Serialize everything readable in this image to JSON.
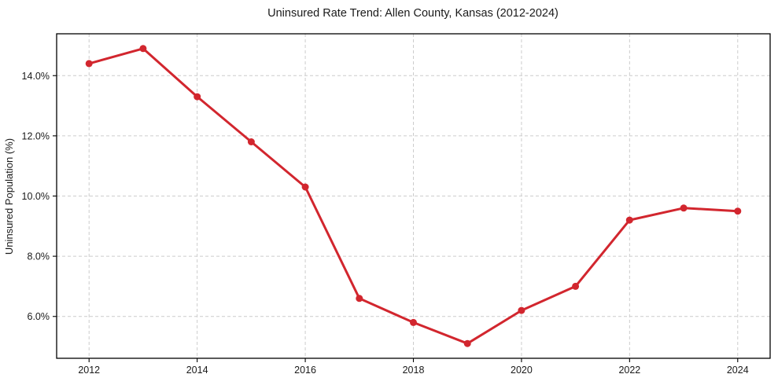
{
  "chart_data": {
    "type": "line",
    "title": "Uninsured Rate Trend: Allen County, Kansas (2012-2024)",
    "xlabel": "",
    "ylabel": "Uninsured Population (%)",
    "series": [
      {
        "name": "Uninsured rate",
        "x": [
          2012,
          2013,
          2014,
          2015,
          2016,
          2017,
          2018,
          2019,
          2020,
          2021,
          2022,
          2023,
          2024
        ],
        "values": [
          14.4,
          14.9,
          13.3,
          11.8,
          10.3,
          6.6,
          5.8,
          5.1,
          6.2,
          7.0,
          9.2,
          9.6,
          9.5
        ]
      }
    ],
    "xlim": [
      2011.4,
      2024.6
    ],
    "ylim": [
      4.61,
      15.39
    ],
    "x_ticks": [
      2012,
      2014,
      2016,
      2018,
      2020,
      2022,
      2024
    ],
    "x_tick_labels": [
      "2012",
      "2014",
      "2016",
      "2018",
      "2020",
      "2022",
      "2024"
    ],
    "y_ticks": [
      6,
      8,
      10,
      12,
      14
    ],
    "y_tick_labels": [
      "6.0%",
      "8.0%",
      "10.0%",
      "12.0%",
      "14.0%"
    ],
    "grid": true,
    "grid_style": "dashed",
    "legend": "none",
    "marker": "circle",
    "style": {
      "line_color": "#d2262e",
      "marker_color": "#d2262e",
      "grid_color": "#cccccc",
      "spine_color": "#000000",
      "text_color": "#1a1a1a",
      "background": "#ffffff"
    }
  }
}
